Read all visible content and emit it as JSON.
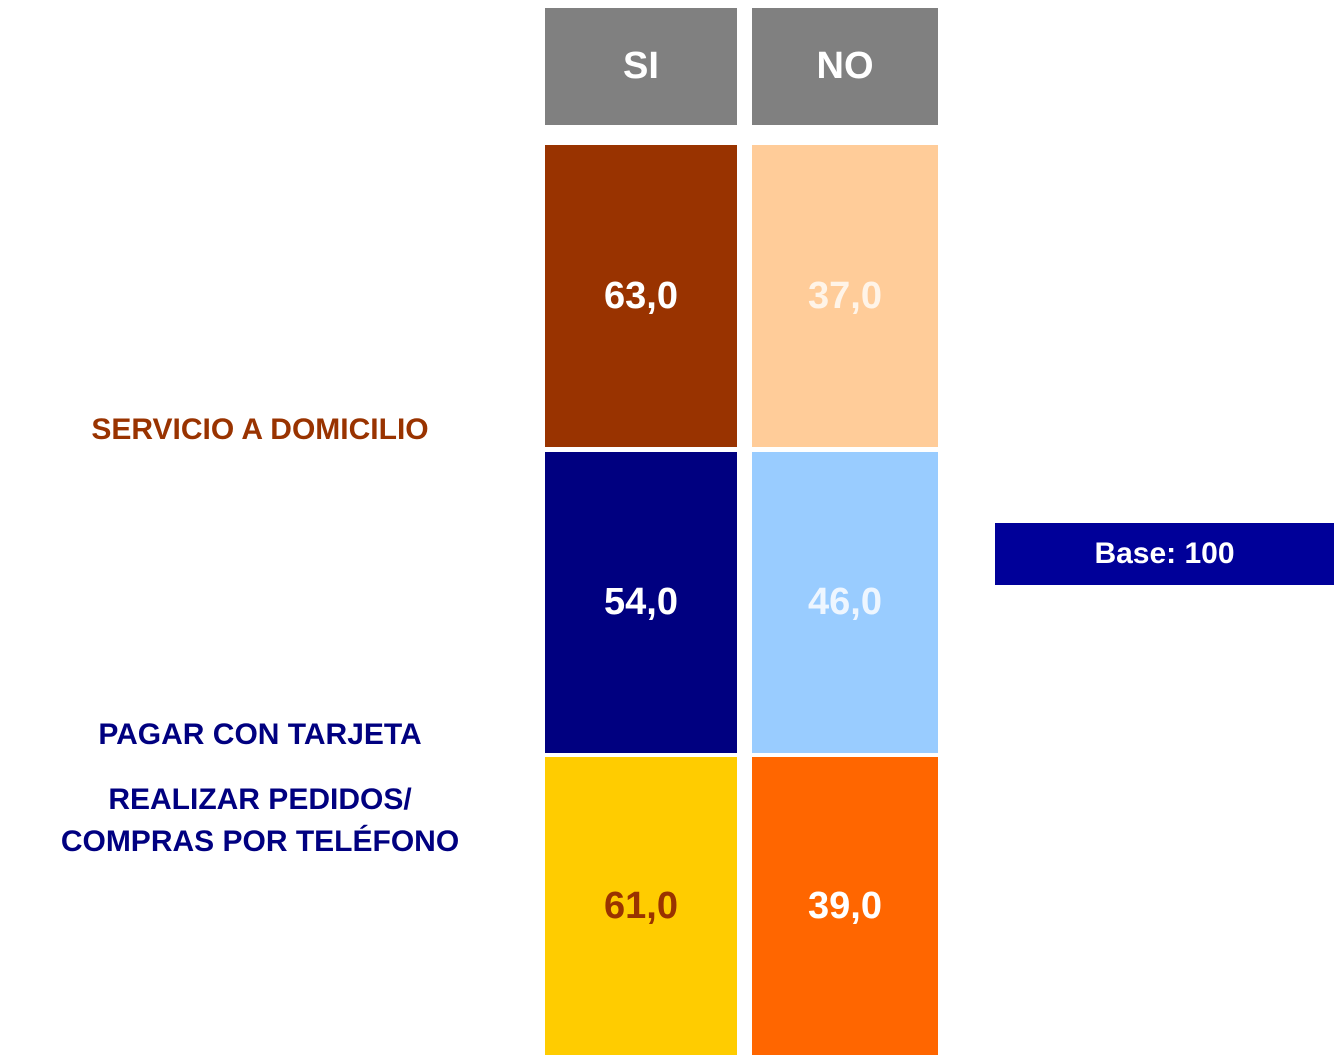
{
  "table": {
    "columns": [
      "SI",
      "NO"
    ],
    "rows": [
      {
        "label": [
          "SERVICIO A DOMICILIO"
        ],
        "label_color": "#993300",
        "cells": [
          "63,0",
          "37,0"
        ],
        "fills": [
          "#993300",
          "#ffcc99"
        ],
        "text_colors": [
          "#ffffff",
          "#fff4e8"
        ]
      },
      {
        "label": [
          "PAGAR CON TARJETA"
        ],
        "label_color": "#000080",
        "cells": [
          "54,0",
          "46,0"
        ],
        "fills": [
          "#000080",
          "#99ccff"
        ],
        "text_colors": [
          "#ffffff",
          "#eef6ff"
        ]
      },
      {
        "label": [
          "REALIZAR PEDIDOS/",
          "COMPRAS POR TELÉFONO"
        ],
        "label_color": "#000080",
        "cells": [
          "61,0",
          "39,0"
        ],
        "fills": [
          "#ffcc00",
          "#ff6600"
        ],
        "text_colors": [
          "#993300",
          "#ffffff"
        ]
      }
    ]
  },
  "base": {
    "text": "Base: 100",
    "fill": "#000099"
  }
}
